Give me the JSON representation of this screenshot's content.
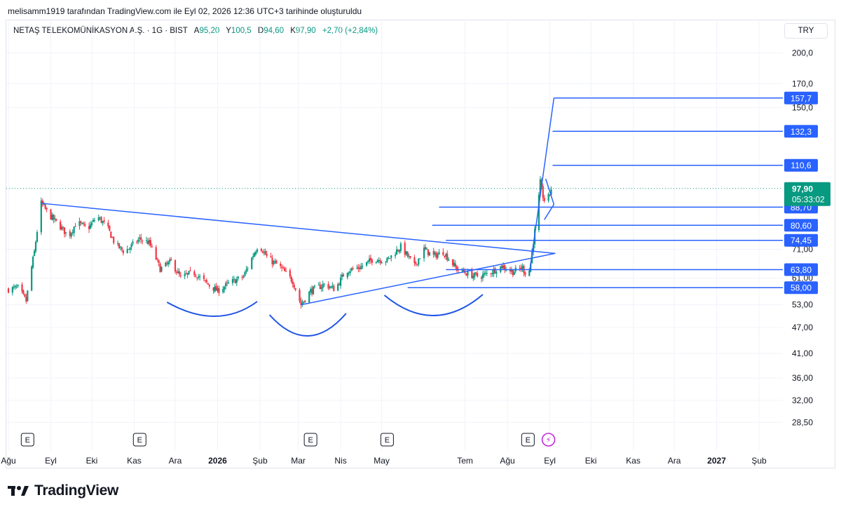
{
  "caption": "melisamm1919 tarafından TradingView.com ile Eyl 02, 2026 12:36 UTC+3 tarihinde oluşturuldu",
  "legend": {
    "symbol": "NETAŞ TELEKOMÜNİKASYON A.Ş. · 1G · BIST",
    "open_label": "A",
    "open": "95,20",
    "high_label": "Y",
    "high": "100,5",
    "low_label": "D",
    "low": "94,60",
    "close_label": "K",
    "close": "97,90",
    "change": "+2,70 (+2,84%)"
  },
  "currency": "TRY",
  "brand": "TradingView",
  "colors": {
    "up": "#089981",
    "down": "#f23645",
    "drawing": "#2962ff",
    "price_tag": "#089981",
    "level_tag": "#2962ff",
    "grid": "#f0f3fa",
    "arc": "#1e53e5"
  },
  "chart_data": {
    "type": "candlestick",
    "y_scale": "log",
    "ylim": [
      26.5,
      215
    ],
    "y_ticks": [
      {
        "value": 200.0,
        "label": "200,0"
      },
      {
        "value": 170.0,
        "label": "170,0"
      },
      {
        "value": 150.0,
        "label": "150,0"
      },
      {
        "value": 71.0,
        "label": "71,00"
      },
      {
        "value": 61.0,
        "label": "61,00"
      },
      {
        "value": 53.0,
        "label": "53,00"
      },
      {
        "value": 47.0,
        "label": "47,00"
      },
      {
        "value": 41.0,
        "label": "41,00"
      },
      {
        "value": 36.0,
        "label": "36,00"
      },
      {
        "value": 32.0,
        "label": "32,00"
      },
      {
        "value": 28.5,
        "label": "28,50"
      }
    ],
    "x_ticks": [
      {
        "label": "Ağu",
        "date": "2025-08-01",
        "bold": false
      },
      {
        "label": "Eyl",
        "date": "2025-09-01",
        "bold": false
      },
      {
        "label": "Eki",
        "date": "2025-10-01",
        "bold": false
      },
      {
        "label": "Kas",
        "date": "2025-11-01",
        "bold": false
      },
      {
        "label": "Ara",
        "date": "2025-12-01",
        "bold": false
      },
      {
        "label": "2026",
        "date": "2026-01-01",
        "bold": true
      },
      {
        "label": "Şub",
        "date": "2026-02-01",
        "bold": false
      },
      {
        "label": "Mar",
        "date": "2026-03-01",
        "bold": false
      },
      {
        "label": "Nis",
        "date": "2026-04-01",
        "bold": false
      },
      {
        "label": "May",
        "date": "2026-05-01",
        "bold": false
      },
      {
        "label": "Tem",
        "date": "2026-07-01",
        "bold": false
      },
      {
        "label": "Ağu",
        "date": "2026-08-01",
        "bold": false
      },
      {
        "label": "Eyl",
        "date": "2026-09-01",
        "bold": false
      },
      {
        "label": "Eki",
        "date": "2026-10-01",
        "bold": false
      },
      {
        "label": "Kas",
        "date": "2026-11-01",
        "bold": false
      },
      {
        "label": "Ara",
        "date": "2026-12-01",
        "bold": false
      },
      {
        "label": "2027",
        "date": "2027-01-01",
        "bold": true
      },
      {
        "label": "Şub",
        "date": "2027-02-01",
        "bold": false
      }
    ],
    "event_markers": [
      {
        "date": "2025-08-15",
        "label": "E"
      },
      {
        "date": "2025-11-05",
        "label": "E"
      },
      {
        "date": "2026-03-10",
        "label": "E"
      },
      {
        "date": "2026-05-05",
        "label": "E"
      },
      {
        "date": "2026-08-16",
        "label": "E"
      },
      {
        "date": "2026-08-31",
        "label": "⚡"
      }
    ],
    "price_path": [
      [
        "2025-08-01",
        57.5
      ],
      [
        "2025-08-08",
        58.0
      ],
      [
        "2025-08-14",
        54.0
      ],
      [
        "2025-08-20",
        70.0
      ],
      [
        "2025-08-25",
        90.5
      ],
      [
        "2025-08-31",
        85.0
      ],
      [
        "2025-09-08",
        80.0
      ],
      [
        "2025-09-14",
        76.0
      ],
      [
        "2025-09-20",
        82.0
      ],
      [
        "2025-09-28",
        79.0
      ],
      [
        "2025-10-05",
        84.5
      ],
      [
        "2025-10-12",
        80.0
      ],
      [
        "2025-10-18",
        73.0
      ],
      [
        "2025-10-25",
        70.0
      ],
      [
        "2025-11-05",
        75.0
      ],
      [
        "2025-11-12",
        73.5
      ],
      [
        "2025-11-20",
        64.0
      ],
      [
        "2025-11-28",
        66.5
      ],
      [
        "2025-12-05",
        61.0
      ],
      [
        "2025-12-14",
        63.0
      ],
      [
        "2025-12-25",
        59.0
      ],
      [
        "2026-01-01",
        57.0
      ],
      [
        "2026-01-10",
        59.5
      ],
      [
        "2026-01-20",
        61.5
      ],
      [
        "2026-01-31",
        73.0
      ],
      [
        "2026-02-07",
        67.5
      ],
      [
        "2026-02-15",
        65.0
      ],
      [
        "2026-02-25",
        60.0
      ],
      [
        "2026-03-03",
        53.0
      ],
      [
        "2026-03-10",
        57.0
      ],
      [
        "2026-03-20",
        59.0
      ],
      [
        "2026-03-28",
        57.5
      ],
      [
        "2026-04-05",
        63.5
      ],
      [
        "2026-04-15",
        64.5
      ],
      [
        "2026-04-25",
        67.5
      ],
      [
        "2026-05-05",
        67.0
      ],
      [
        "2026-05-15",
        72.0
      ],
      [
        "2026-05-25",
        65.0
      ],
      [
        "2026-06-01",
        71.0
      ],
      [
        "2026-06-08",
        68.5
      ],
      [
        "2026-06-15",
        70.0
      ],
      [
        "2026-06-25",
        64.0
      ],
      [
        "2026-07-05",
        62.0
      ],
      [
        "2026-07-12",
        61.5
      ],
      [
        "2026-07-20",
        63.0
      ],
      [
        "2026-07-28",
        65.0
      ],
      [
        "2026-08-05",
        63.0
      ],
      [
        "2026-08-12",
        64.5
      ],
      [
        "2026-08-16",
        61.0
      ],
      [
        "2026-08-18",
        66.0
      ],
      [
        "2026-08-21",
        78.0
      ],
      [
        "2026-08-23",
        86.0
      ],
      [
        "2026-08-25",
        101.0
      ],
      [
        "2026-08-27",
        94.0
      ],
      [
        "2026-08-29",
        90.0
      ],
      [
        "2026-09-01",
        95.2
      ],
      [
        "2026-09-02",
        97.9
      ]
    ],
    "last_price": {
      "value": 97.9,
      "label": "97,90",
      "countdown": "05:33:02"
    },
    "levels": [
      {
        "value": 157.7,
        "label": "157,7",
        "start": "2026-09-04"
      },
      {
        "value": 132.3,
        "label": "132,3",
        "start": "2026-09-03"
      },
      {
        "value": 110.6,
        "label": "110,6",
        "start": "2026-09-03"
      },
      {
        "value": 88.7,
        "label": "88,70",
        "start": "2026-06-12"
      },
      {
        "value": 80.6,
        "label": "80,60",
        "start": "2026-06-07"
      },
      {
        "value": 74.45,
        "label": "74,45",
        "start": "2026-06-17"
      },
      {
        "value": 63.8,
        "label": "63,80",
        "start": "2026-06-17"
      },
      {
        "value": 58.0,
        "label": "58,00",
        "start": "2026-05-20"
      }
    ],
    "trend_lines": [
      [
        [
          "2025-08-25",
          90.5
        ],
        [
          "2026-09-05",
          69.5
        ]
      ],
      [
        [
          "2026-03-03",
          53.0
        ],
        [
          "2026-09-05",
          69.5
        ]
      ],
      [
        [
          "2026-08-17",
          62.5
        ],
        [
          "2026-09-04",
          157.7
        ]
      ],
      [
        [
          "2026-08-29",
          103.0
        ],
        [
          "2026-09-04",
          90.0
        ]
      ],
      [
        [
          "2026-08-28",
          83.0
        ],
        [
          "2026-09-04",
          90.0
        ]
      ]
    ],
    "arcs": [
      {
        "x0": "2025-11-25",
        "x1": "2026-01-30",
        "bottom": "2026-01-01"
      },
      {
        "x0": "2026-02-08",
        "x1": "2026-04-05",
        "bottom": "2026-03-08"
      },
      {
        "x0": "2026-05-03",
        "x1": "2026-07-14",
        "bottom": "2026-06-08"
      }
    ]
  }
}
